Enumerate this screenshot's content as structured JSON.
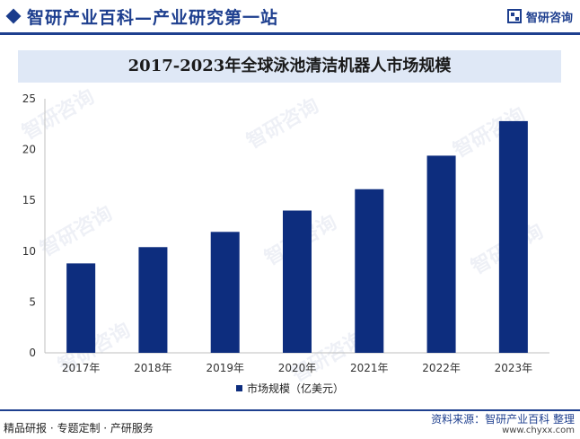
{
  "header": {
    "site_title": "智研产业百科—产业研究第一站",
    "brand_name": "智研咨询"
  },
  "watermark_text": "智研咨询",
  "chart_data": {
    "type": "bar",
    "title": "2017-2023年全球泳池清洁机器人市场规模",
    "categories": [
      "2017年",
      "2018年",
      "2019年",
      "2020年",
      "2021年",
      "2022年",
      "2023年"
    ],
    "series": [
      {
        "name": "市场规模（亿美元）",
        "values": [
          8.8,
          10.4,
          11.9,
          14.0,
          16.1,
          19.4,
          22.8
        ]
      }
    ],
    "ylim": [
      0,
      25
    ],
    "yticks": [
      0,
      5,
      10,
      15,
      20,
      25
    ],
    "grid": false,
    "legend_position": "bottom",
    "bar_color": "#0d2d7e"
  },
  "footer": {
    "left": "精品研报 · 专题定制 · 产研服务",
    "source": "资料来源：智研产业百科 整理",
    "url": "www.chyxx.com"
  }
}
